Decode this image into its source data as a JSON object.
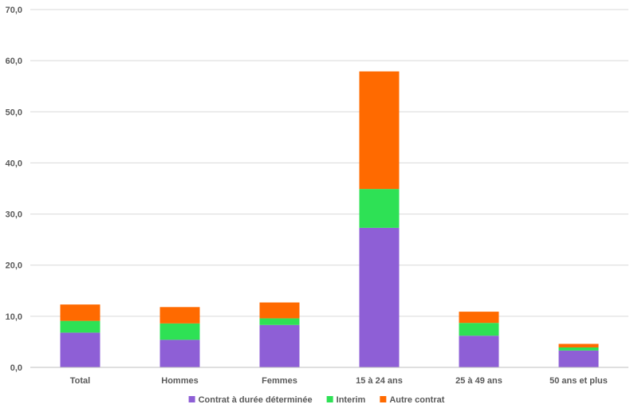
{
  "chart_data": {
    "type": "bar",
    "stacked": true,
    "categories": [
      "Total",
      "Hommes",
      "Femmes",
      "15 à 24 ans",
      "25 à 49 ans",
      "50 ans et plus"
    ],
    "series": [
      {
        "name": "Contrat à durée déterminée",
        "color": "#8e5fd6",
        "values": [
          6.8,
          5.4,
          8.3,
          27.3,
          6.2,
          3.3
        ]
      },
      {
        "name": "Interim",
        "color": "#2ee155",
        "values": [
          2.3,
          3.2,
          1.3,
          7.6,
          2.5,
          0.6
        ]
      },
      {
        "name": "Autre contrat",
        "color": "#ff6a00",
        "values": [
          3.2,
          3.2,
          3.1,
          23.0,
          2.2,
          0.7
        ]
      }
    ],
    "ylim": [
      0,
      70
    ],
    "yticks": [
      "0,0",
      "10,0",
      "20,0",
      "30,0",
      "40,0",
      "50,0",
      "60,0",
      "70,0"
    ],
    "grid": true,
    "legend_position": "bottom"
  }
}
